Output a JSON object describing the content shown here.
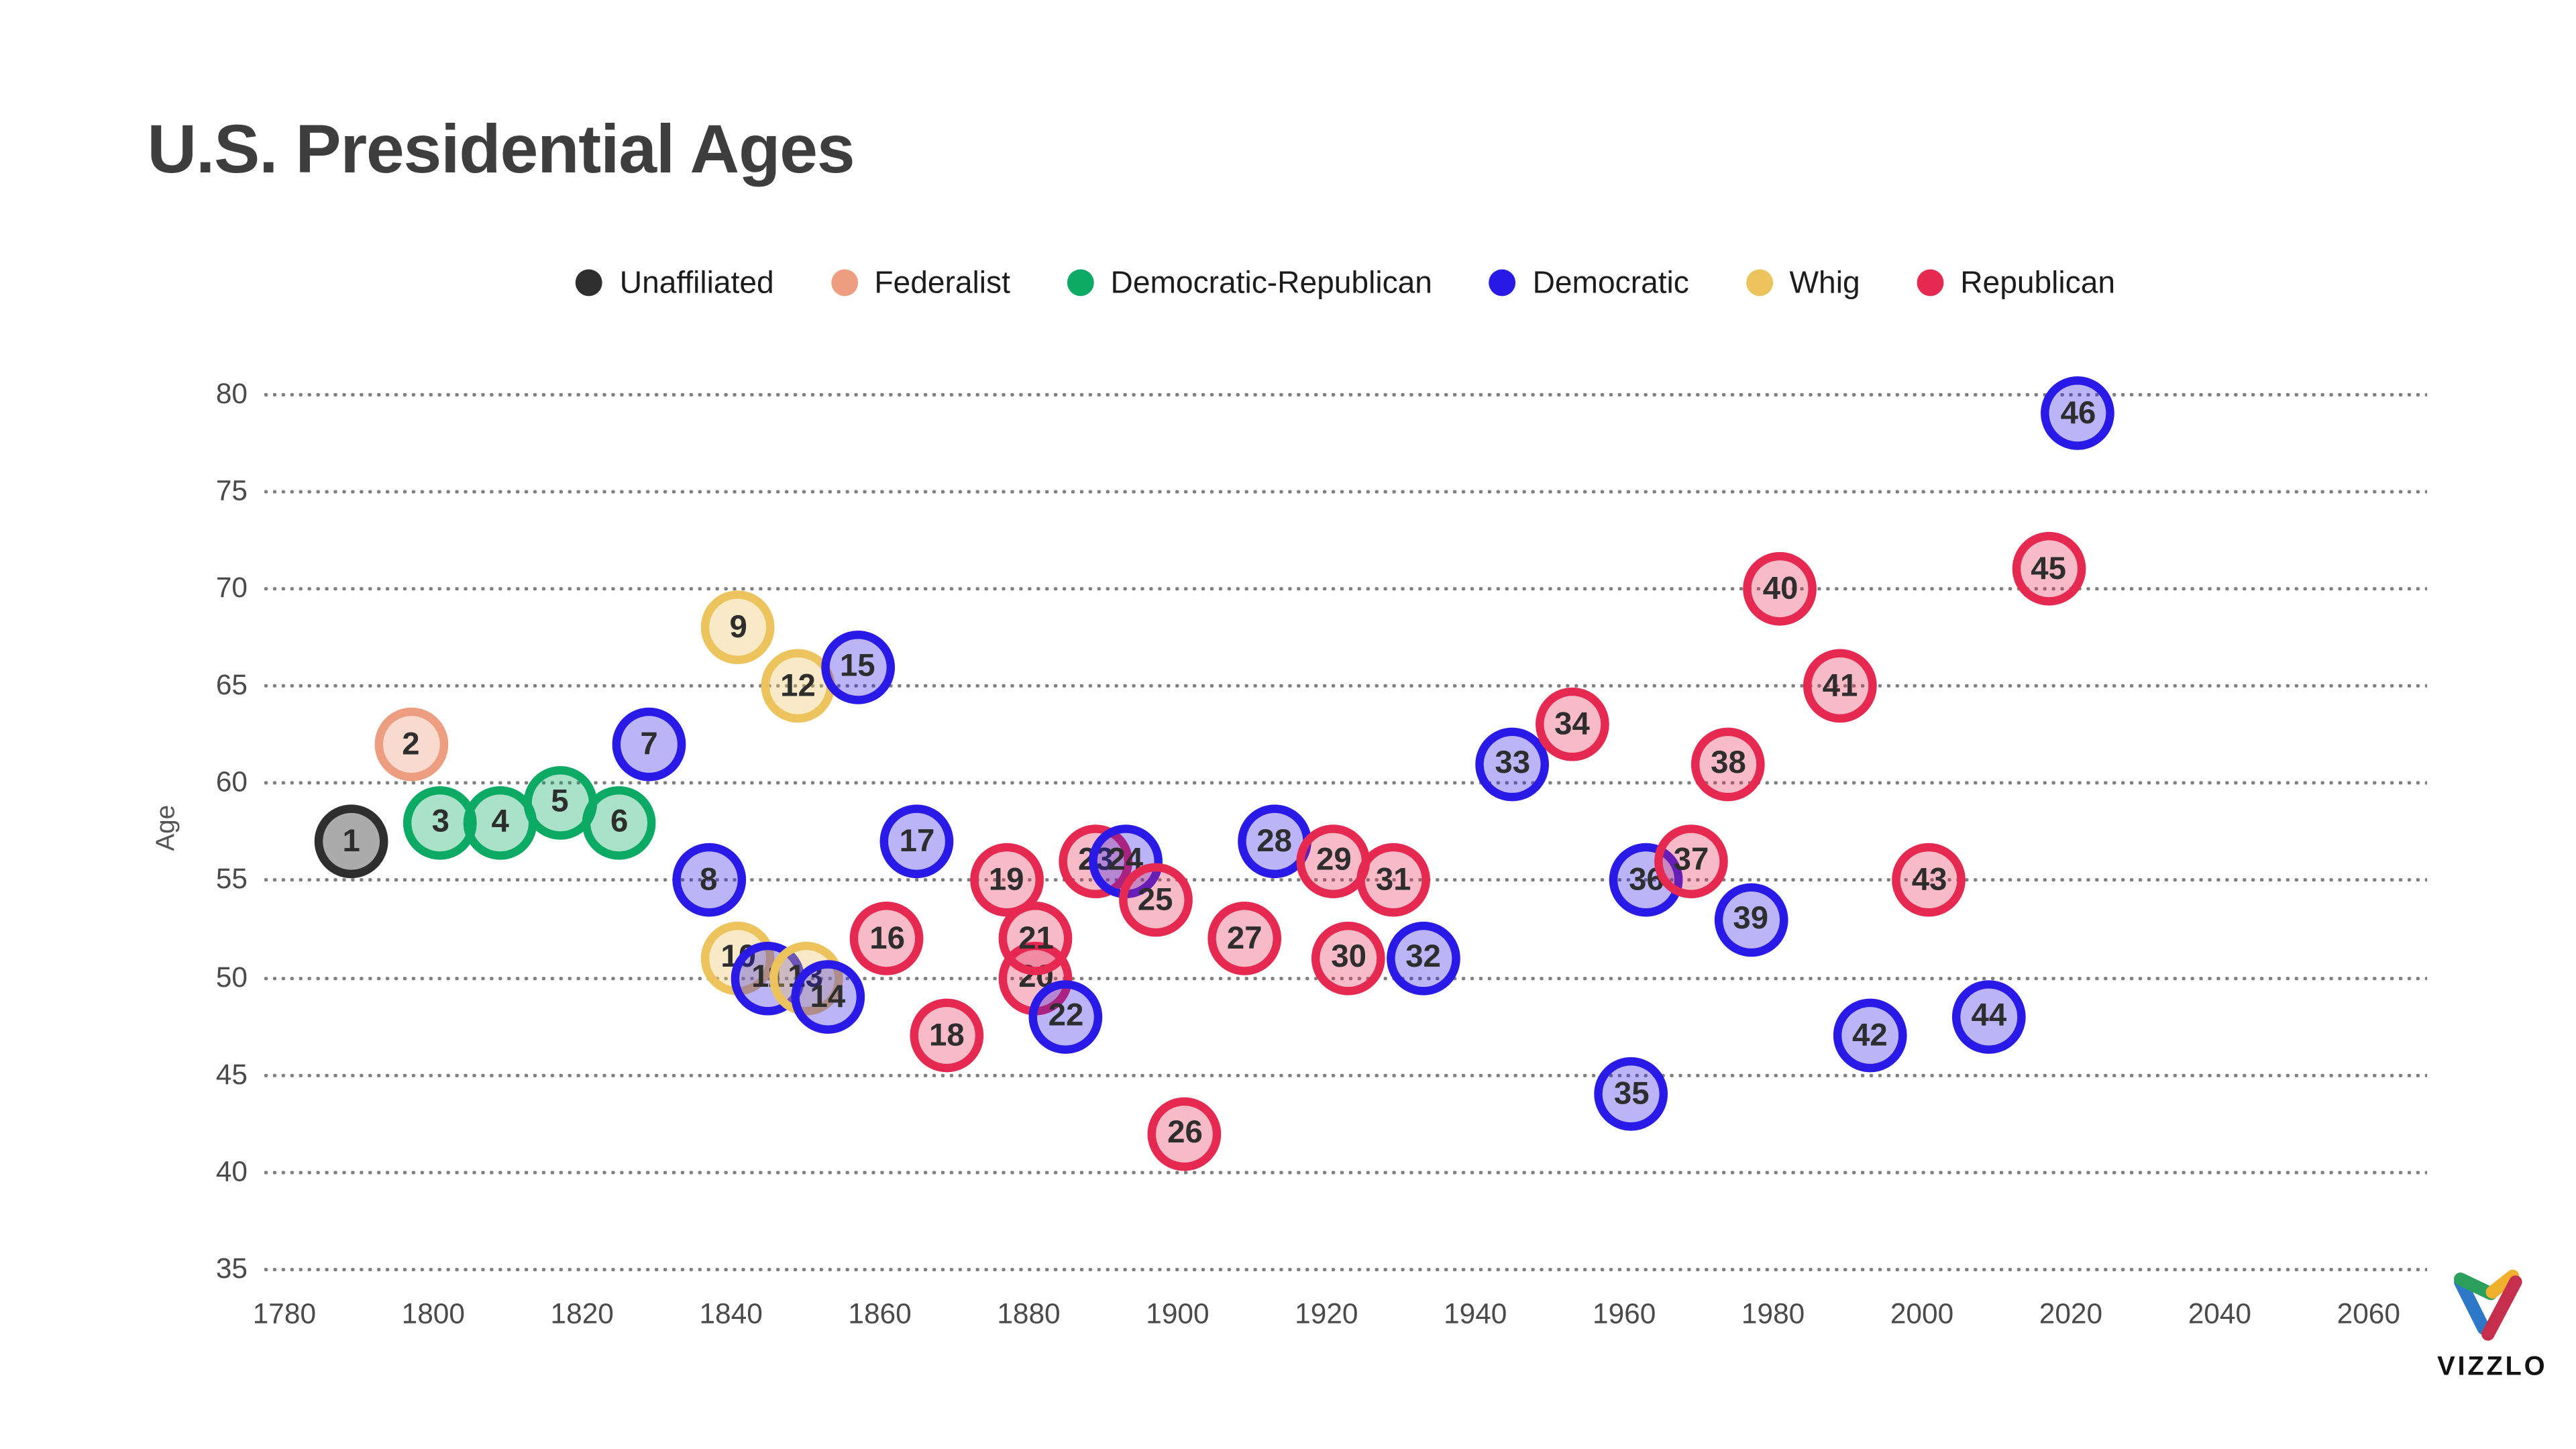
{
  "header": {
    "title": "U.S. Presidential Ages"
  },
  "legend": {
    "items": [
      {
        "label": "Unaffiliated",
        "color": "#2e2e2e"
      },
      {
        "label": "Federalist",
        "color": "#ee9e80"
      },
      {
        "label": "Democratic-Republican",
        "color": "#0caa64"
      },
      {
        "label": "Democratic",
        "color": "#2a1ae8"
      },
      {
        "label": "Whig",
        "color": "#ecc35c"
      },
      {
        "label": "Republican",
        "color": "#e62950"
      }
    ]
  },
  "chart_data": {
    "type": "scatter",
    "title": "U.S. Presidential Ages",
    "xlabel": "",
    "ylabel": "Age",
    "x_ticks": [
      1780,
      1800,
      1820,
      1840,
      1860,
      1880,
      1900,
      1920,
      1940,
      1960,
      1980,
      2000,
      2020,
      2040,
      2060
    ],
    "y_ticks": [
      35,
      40,
      45,
      50,
      55,
      60,
      65,
      70,
      75,
      80
    ],
    "xlim": [
      1770,
      2072
    ],
    "ylim": [
      35,
      80
    ],
    "grid": "dotted-horizontal",
    "legend_position": "top-center",
    "parties": {
      "Unaffiliated": {
        "stroke": "#2e2e2e",
        "fill": "rgba(46,46,46,0.40)"
      },
      "Federalist": {
        "stroke": "#ee9e80",
        "fill": "rgba(238,158,128,0.38)"
      },
      "Democratic-Republican": {
        "stroke": "#0caa64",
        "fill": "rgba(12,170,100,0.35)"
      },
      "Democratic": {
        "stroke": "#2a1ae8",
        "fill": "rgba(42,26,232,0.32)"
      },
      "Whig": {
        "stroke": "#ecc35c",
        "fill": "rgba(236,195,92,0.35)"
      },
      "Republican": {
        "stroke": "#e62950",
        "fill": "rgba(230,41,80,0.32)"
      }
    },
    "points": [
      {
        "n": 1,
        "year": 1789,
        "age": 57,
        "party": "Unaffiliated"
      },
      {
        "n": 2,
        "year": 1797,
        "age": 62,
        "party": "Federalist"
      },
      {
        "n": 3,
        "year": 1801,
        "age": 58,
        "party": "Democratic-Republican"
      },
      {
        "n": 4,
        "year": 1809,
        "age": 58,
        "party": "Democratic-Republican"
      },
      {
        "n": 5,
        "year": 1817,
        "age": 59,
        "party": "Democratic-Republican"
      },
      {
        "n": 6,
        "year": 1825,
        "age": 58,
        "party": "Democratic-Republican"
      },
      {
        "n": 7,
        "year": 1829,
        "age": 62,
        "party": "Democratic"
      },
      {
        "n": 8,
        "year": 1837,
        "age": 55,
        "party": "Democratic"
      },
      {
        "n": 9,
        "year": 1841,
        "age": 68,
        "party": "Whig"
      },
      {
        "n": 10,
        "year": 1841,
        "age": 51,
        "party": "Whig"
      },
      {
        "n": 11,
        "year": 1845,
        "age": 50,
        "party": "Democratic"
      },
      {
        "n": 12,
        "year": 1849,
        "age": 65,
        "party": "Whig"
      },
      {
        "n": 13,
        "year": 1850,
        "age": 50,
        "party": "Whig"
      },
      {
        "n": 14,
        "year": 1853,
        "age": 49,
        "party": "Democratic"
      },
      {
        "n": 15,
        "year": 1857,
        "age": 66,
        "party": "Democratic"
      },
      {
        "n": 16,
        "year": 1861,
        "age": 52,
        "party": "Republican"
      },
      {
        "n": 17,
        "year": 1865,
        "age": 57,
        "party": "Democratic"
      },
      {
        "n": 18,
        "year": 1869,
        "age": 47,
        "party": "Republican"
      },
      {
        "n": 19,
        "year": 1877,
        "age": 55,
        "party": "Republican"
      },
      {
        "n": 20,
        "year": 1881,
        "age": 50,
        "party": "Republican"
      },
      {
        "n": 21,
        "year": 1881,
        "age": 52,
        "party": "Republican"
      },
      {
        "n": 22,
        "year": 1885,
        "age": 48,
        "party": "Democratic"
      },
      {
        "n": 23,
        "year": 1889,
        "age": 56,
        "party": "Republican"
      },
      {
        "n": 24,
        "year": 1893,
        "age": 56,
        "party": "Democratic"
      },
      {
        "n": 25,
        "year": 1897,
        "age": 54,
        "party": "Republican"
      },
      {
        "n": 26,
        "year": 1901,
        "age": 42,
        "party": "Republican"
      },
      {
        "n": 27,
        "year": 1909,
        "age": 52,
        "party": "Republican"
      },
      {
        "n": 28,
        "year": 1913,
        "age": 57,
        "party": "Democratic"
      },
      {
        "n": 29,
        "year": 1921,
        "age": 56,
        "party": "Republican"
      },
      {
        "n": 30,
        "year": 1923,
        "age": 51,
        "party": "Republican"
      },
      {
        "n": 31,
        "year": 1929,
        "age": 55,
        "party": "Republican"
      },
      {
        "n": 32,
        "year": 1933,
        "age": 51,
        "party": "Democratic"
      },
      {
        "n": 33,
        "year": 1945,
        "age": 61,
        "party": "Democratic"
      },
      {
        "n": 34,
        "year": 1953,
        "age": 63,
        "party": "Republican"
      },
      {
        "n": 35,
        "year": 1961,
        "age": 44,
        "party": "Democratic"
      },
      {
        "n": 36,
        "year": 1963,
        "age": 55,
        "party": "Democratic"
      },
      {
        "n": 37,
        "year": 1969,
        "age": 56,
        "party": "Republican"
      },
      {
        "n": 38,
        "year": 1974,
        "age": 61,
        "party": "Republican"
      },
      {
        "n": 39,
        "year": 1977,
        "age": 53,
        "party": "Democratic"
      },
      {
        "n": 40,
        "year": 1981,
        "age": 70,
        "party": "Republican"
      },
      {
        "n": 41,
        "year": 1989,
        "age": 65,
        "party": "Republican"
      },
      {
        "n": 42,
        "year": 1993,
        "age": 47,
        "party": "Democratic"
      },
      {
        "n": 43,
        "year": 2001,
        "age": 55,
        "party": "Republican"
      },
      {
        "n": 44,
        "year": 2009,
        "age": 48,
        "party": "Democratic"
      },
      {
        "n": 45,
        "year": 2017,
        "age": 71,
        "party": "Republican"
      },
      {
        "n": 46,
        "year": 2021,
        "age": 79,
        "party": "Democratic"
      }
    ]
  },
  "branding": {
    "name": "VIZZLO",
    "mark_colors": {
      "blue": "#2e79c7",
      "green": "#2aa05c",
      "yellow": "#efb02e",
      "red": "#c52f4d"
    }
  }
}
